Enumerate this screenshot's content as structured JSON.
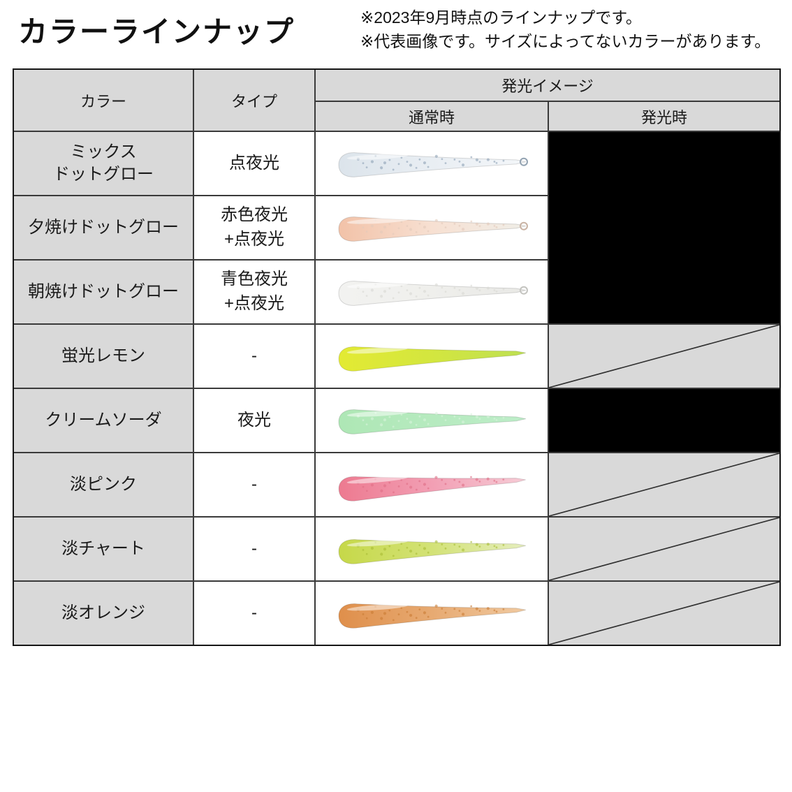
{
  "page": {
    "title": "カラーラインナップ",
    "note_line1": "※2023年9月時点のラインナップです。",
    "note_line2": "※代表画像です。サイズによってないカラーがあります。"
  },
  "table": {
    "headers": {
      "color": "カラー",
      "type": "タイプ",
      "glow_image": "発光イメージ",
      "normal": "通常時",
      "glowing": "発光時"
    },
    "colors": {
      "header_bg": "#d9d9d9",
      "grid_line": "#3a3a3a",
      "glow_cell_black": "#000000",
      "na_cell_gray": "#d9d9d9"
    },
    "rows": [
      {
        "color": "ミックス\nドットグロー",
        "type": "点夜光",
        "glow_cell": "black",
        "lure": {
          "head_color": "#dce4eb",
          "mid_color": "#e9eef3",
          "tail_color": "#f3f6f9",
          "speckle_color": "#8da2b5",
          "tail_loop": true,
          "loop_color": "#93a3b2",
          "rotation_deg": -1
        }
      },
      {
        "color": "夕焼けドットグロー",
        "type": "赤色夜光\n+点夜光",
        "glow_cell": "black",
        "lure": {
          "head_color": "#f2c2a8",
          "mid_color": "#f7e0d2",
          "tail_color": "#f0ede6",
          "speckle_color": "#e3cabb",
          "tail_loop": true,
          "loop_color": "#c9b3a4",
          "rotation_deg": -1
        }
      },
      {
        "color": "朝焼けドットグロー",
        "type": "青色夜光\n+点夜光",
        "glow_cell": "black",
        "lure": {
          "head_color": "#f2f2f0",
          "mid_color": "#efefec",
          "tail_color": "#e9e9e6",
          "speckle_color": "#d9d9d4",
          "tail_loop": true,
          "loop_color": "#c4c4c0",
          "rotation_deg": -1
        }
      },
      {
        "color": "蛍光レモン",
        "type": "-",
        "glow_cell": "crossed",
        "lure": {
          "head_color": "#e3ea33",
          "mid_color": "#d3e63f",
          "tail_color": "#bfe052",
          "speckle_color": null,
          "tail_loop": false,
          "loop_color": null,
          "rotation_deg": -2
        }
      },
      {
        "color": "クリームソーダ",
        "type": "夜光",
        "glow_cell": "black",
        "lure": {
          "head_color": "#aee7b5",
          "mid_color": "#b6eabf",
          "tail_color": "#bdedc8",
          "speckle_color": "#d8f3dc",
          "tail_loop": false,
          "loop_color": null,
          "rotation_deg": -1
        }
      },
      {
        "color": "淡ピンク",
        "type": "-",
        "glow_cell": "crossed",
        "lure": {
          "head_color": "#ed7a90",
          "mid_color": "#f29fb4",
          "tail_color": "#f6c9d4",
          "speckle_color": "#df6e86",
          "tail_loop": false,
          "loop_color": null,
          "rotation_deg": -3
        }
      },
      {
        "color": "淡チャート",
        "type": "-",
        "glow_cell": "crossed",
        "lure": {
          "head_color": "#c6d849",
          "mid_color": "#d3e277",
          "tail_color": "#e4edba",
          "speckle_color": "#a9bc35",
          "tail_loop": false,
          "loop_color": null,
          "rotation_deg": -2
        }
      },
      {
        "color": "淡オレンジ",
        "type": "-",
        "glow_cell": "crossed",
        "lure": {
          "head_color": "#df8f4b",
          "mid_color": "#e7aa72",
          "tail_color": "#f0c89e",
          "speckle_color": "#c97c34",
          "tail_loop": false,
          "loop_color": null,
          "rotation_deg": -2
        }
      }
    ]
  }
}
